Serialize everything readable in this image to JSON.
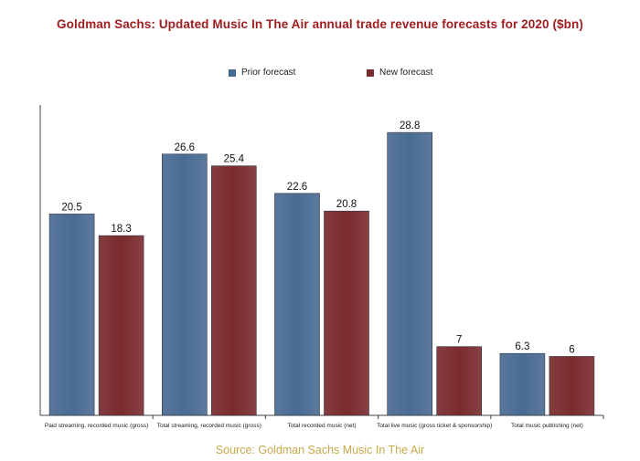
{
  "chart_data": {
    "type": "bar",
    "title": "Goldman Sachs: Updated Music In The Air annual trade revenue forecasts for 2020 ($bn)",
    "categories": [
      "Paid streaming, recorded music (gross)",
      "Total streaming, recorded music (gross)",
      "Total recorded music (net)",
      "Total live music (gross ticket & sponsorship)",
      "Total music publishing (net)"
    ],
    "series": [
      {
        "name": "Prior forecast",
        "values": [
          20.5,
          26.6,
          22.6,
          28.8,
          6.3
        ],
        "labels": [
          "20.5",
          "26.6",
          "22.6",
          "28.8",
          "6.3"
        ],
        "color": "#4a6b93"
      },
      {
        "name": "New forecast",
        "values": [
          18.3,
          25.4,
          20.8,
          7,
          6
        ],
        "labels": [
          "18.3",
          "25.4",
          "20.8",
          "7",
          "6"
        ],
        "color": "#7a2b2e"
      }
    ],
    "ylim": [
      0,
      31.6
    ],
    "legend": "top-center",
    "grid": false,
    "source": "Source: Goldman Sachs Music In The Air"
  }
}
